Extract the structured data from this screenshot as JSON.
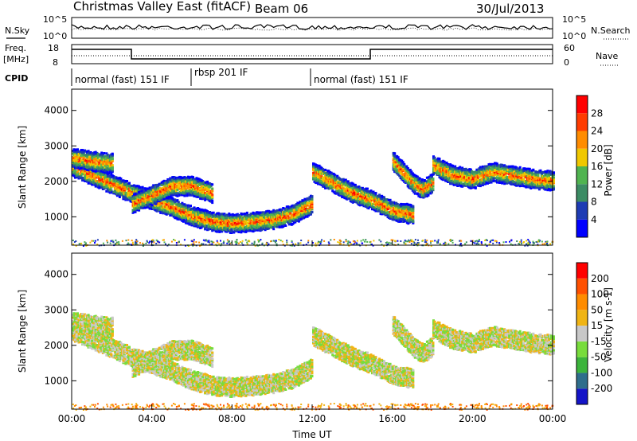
{
  "header": {
    "title": "Christmas Valley East (fitACF)",
    "beam": "Beam 06",
    "date": "30/Jul/2013"
  },
  "noise_panel": {
    "left_label": "N.Sky",
    "right_label": "N.Search",
    "left_ticks": [
      "10^5",
      "10^0"
    ],
    "right_ticks": [
      "10^5",
      "10^0"
    ]
  },
  "freq_panel": {
    "left_label_1": "Freq.",
    "left_label_2": "[MHz]",
    "right_label": "Nave",
    "left_ticks": [
      "18",
      "8"
    ],
    "right_ticks": [
      "60",
      "0"
    ]
  },
  "cpid_panel": {
    "label": "CPID",
    "segments": [
      {
        "label": "normal (fast) 151 IF",
        "start_hour": 0,
        "end_hour": 6
      },
      {
        "label": "rbsp 201 IF",
        "start_hour": 6,
        "end_hour": 12
      },
      {
        "label": "normal (fast) 151 IF",
        "start_hour": 12,
        "end_hour": 24
      }
    ]
  },
  "chart_data": [
    {
      "type": "heatmap",
      "name": "power",
      "ylabel": "Slant Range [km]",
      "yticks": [
        1000,
        2000,
        3000,
        4000
      ],
      "ylim": [
        200,
        4600
      ],
      "xlim": [
        0,
        24
      ],
      "colorbar": {
        "label": "Power [dB]",
        "ticks": [
          "4",
          "8",
          "12",
          "16",
          "20",
          "24",
          "28"
        ],
        "colors": [
          "#0000ff",
          "#1e3cb4",
          "#3c8c64",
          "#50b450",
          "#f0c800",
          "#ff8c00",
          "#ff3c00",
          "#ff0000"
        ]
      },
      "features": [
        {
          "desc": "backscatter",
          "points": [
            [
              0,
              2450
            ],
            [
              1,
              2200
            ],
            [
              2,
              1950
            ],
            [
              3,
              1700
            ],
            [
              4,
              1500
            ],
            [
              5,
              1300
            ],
            [
              6,
              1050
            ],
            [
              7,
              900
            ],
            [
              8,
              850
            ],
            [
              9,
              900
            ],
            [
              10,
              950
            ],
            [
              11,
              1100
            ],
            [
              12,
              1400
            ]
          ]
        },
        {
          "desc": "backscatter",
          "points": [
            [
              3,
              1400
            ],
            [
              4,
              1650
            ],
            [
              5,
              1900
            ],
            [
              6,
              1900
            ],
            [
              7,
              1700
            ]
          ]
        },
        {
          "desc": "backscatter",
          "points": [
            [
              12,
              2300
            ],
            [
              13,
              2000
            ],
            [
              14,
              1700
            ],
            [
              15,
              1500
            ],
            [
              16,
              1200
            ],
            [
              17,
              1100
            ]
          ]
        },
        {
          "desc": "backscatter",
          "points": [
            [
              16,
              2600
            ],
            [
              16.5,
              2300
            ],
            [
              17,
              2000
            ],
            [
              17.5,
              1800
            ],
            [
              18,
              2000
            ]
          ]
        },
        {
          "desc": "backscatter",
          "points": [
            [
              18,
              2500
            ],
            [
              19,
              2200
            ],
            [
              20,
              2100
            ],
            [
              21,
              2300
            ],
            [
              22,
              2200
            ],
            [
              23,
              2100
            ],
            [
              24,
              2050
            ]
          ]
        },
        {
          "desc": "backscatter",
          "points": [
            [
              0,
              2700
            ],
            [
              1,
              2600
            ],
            [
              2,
              2550
            ]
          ]
        }
      ]
    },
    {
      "type": "heatmap",
      "name": "velocity",
      "ylabel": "Slant Range [km]",
      "xlabel": "Time UT",
      "xticks": [
        "00:00",
        "04:00",
        "08:00",
        "12:00",
        "16:00",
        "20:00",
        "00:00"
      ],
      "yticks": [
        1000,
        2000,
        3000,
        4000
      ],
      "ylim": [
        200,
        4600
      ],
      "xlim": [
        0,
        24
      ],
      "colorbar": {
        "label": "Velocity [m s-1]",
        "ticks": [
          "200",
          "100",
          "50",
          "15",
          "-15",
          "-50",
          "-100",
          "-200"
        ],
        "colors": [
          "#1414c8",
          "#2f6e8c",
          "#3cb43c",
          "#78dc3c",
          "#c8c8c8",
          "#f0b414",
          "#ff8c00",
          "#ff5000",
          "#ff0000"
        ]
      }
    }
  ]
}
